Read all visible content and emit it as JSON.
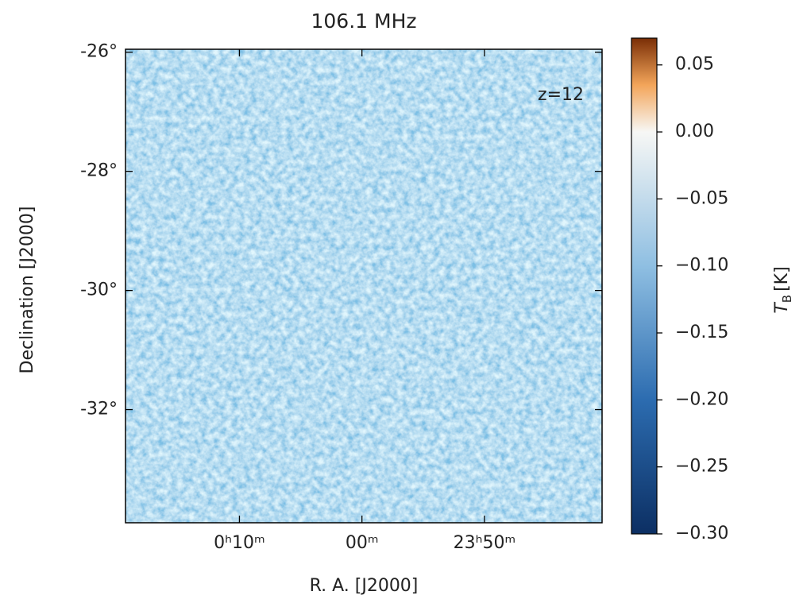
{
  "chart_data": {
    "type": "image",
    "title": "106.1 MHz",
    "annotation": "z=12",
    "xlabel": "R. A. [J2000]",
    "ylabel": "Declination [J2000]",
    "xlim": [
      19.3,
      -19.6
    ],
    "xticks": [
      {
        "value": 10,
        "label": "0ʰ10ᵐ"
      },
      {
        "value": 0,
        "label": "00ᵐ"
      },
      {
        "value": -10,
        "label": "23ʰ50ᵐ"
      }
    ],
    "ylim": [
      -25.95,
      -33.9
    ],
    "yticks": [
      {
        "value": -26,
        "label": "-26°"
      },
      {
        "value": -28,
        "label": "-28°"
      },
      {
        "value": -30,
        "label": "-30°"
      },
      {
        "value": -32,
        "label": "-32°"
      }
    ],
    "colorbar": {
      "label": {
        "symbol": "T",
        "subscript": "B",
        "unit": "[K]"
      },
      "clim": [
        -0.3,
        0.07
      ],
      "center": 0,
      "colors_below": [
        "#0c2f63",
        "#2c6cb0",
        "#8fbfe2",
        "#f7f7f5"
      ],
      "colors_above": [
        "#f7f7f5",
        "#f3a55a",
        "#7a2e06"
      ],
      "ticks": [
        {
          "value": 0.05,
          "label": "0.05"
        },
        {
          "value": 0,
          "label": "0.00"
        },
        {
          "value": -0.05,
          "label": "−0.05"
        },
        {
          "value": -0.1,
          "label": "−0.10"
        },
        {
          "value": -0.15,
          "label": "−0.15"
        },
        {
          "value": -0.2,
          "label": "−0.20"
        },
        {
          "value": -0.25,
          "label": "−0.25"
        },
        {
          "value": -0.3,
          "label": "−0.30"
        }
      ]
    }
  }
}
